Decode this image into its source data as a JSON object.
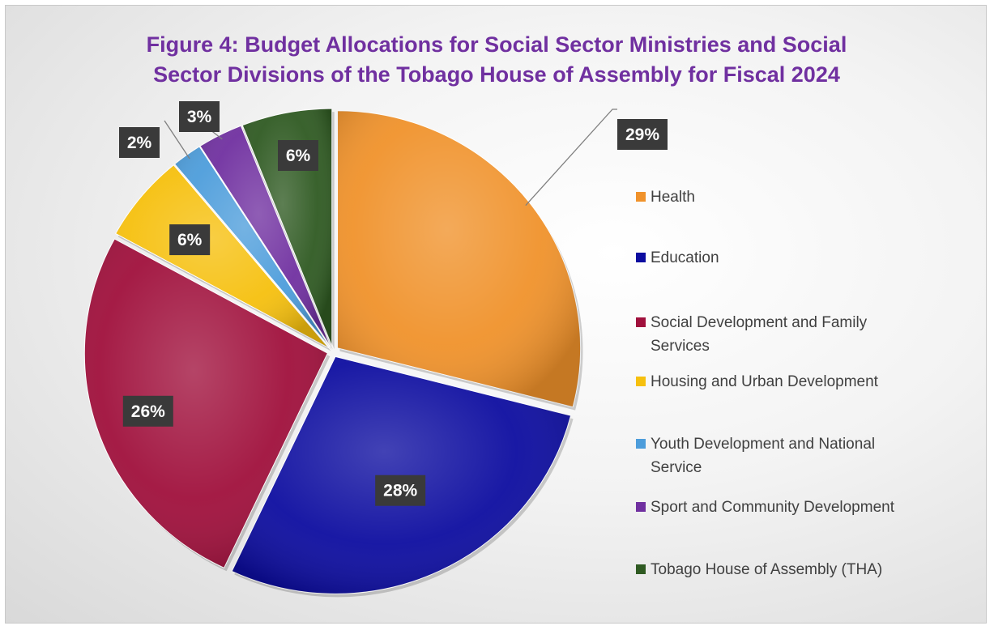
{
  "chart_data": {
    "type": "pie",
    "title_lines": [
      "Figure 4: Budget Allocations for Social Sector Ministries and Social",
      "Sector Divisions of the Tobago House of Assembly for Fiscal 2024"
    ],
    "slices": [
      {
        "name": "Health",
        "value": 29,
        "label": "29%",
        "color": "#f0922b"
      },
      {
        "name": "Education",
        "value": 28,
        "label": "28%",
        "color": "#0d0da0"
      },
      {
        "name": "Social Development and Family Services",
        "value": 26,
        "label": "26%",
        "color": "#a0103c"
      },
      {
        "name": "Housing and Urban Development",
        "value": 6,
        "label": "6%",
        "color": "#f6c00e"
      },
      {
        "name": "Youth Development and National Service",
        "value": 2,
        "label": "2%",
        "color": "#4d9ddb"
      },
      {
        "name": "Sport and Community Development",
        "value": 3,
        "label": "3%",
        "color": "#7030a0"
      },
      {
        "name": "Tobago House of Assembly (THA)",
        "value": 6,
        "label": "6%",
        "color": "#2f5a22"
      }
    ],
    "legend_position": "right"
  },
  "legend_lines": [
    [
      "Health"
    ],
    [
      "Education"
    ],
    [
      "Social Development and Family",
      "Services"
    ],
    [
      "Housing and Urban Development"
    ],
    [
      "Youth Development and National",
      "Service"
    ],
    [
      "Sport and Community Development"
    ],
    [
      "Tobago House of Assembly (THA)"
    ]
  ]
}
